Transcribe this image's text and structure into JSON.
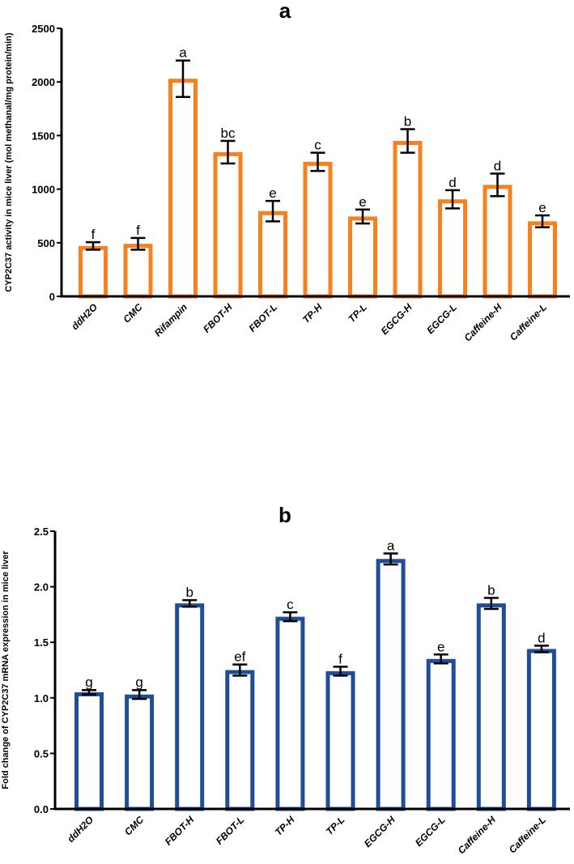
{
  "chart_data": [
    {
      "type": "bar",
      "title": "a",
      "ylabel": "CYP2C37 activity in mice liver (mol methanal/mg protein/min)",
      "xlabel": "",
      "categories": [
        "ddH2O",
        "CMC",
        "Rifampin",
        "FBOT-H",
        "FBOT-L",
        "TP-H",
        "TP-L",
        "EGCG-H",
        "EGCG-L",
        "Caffeine-H",
        "Caffeine-L"
      ],
      "values": [
        470,
        490,
        2030,
        1345,
        795,
        1255,
        745,
        1450,
        905,
        1040,
        700
      ],
      "errors": [
        35,
        55,
        170,
        105,
        95,
        85,
        65,
        110,
        85,
        105,
        55
      ],
      "significance": [
        "f",
        "f",
        "a",
        "bc",
        "e",
        "c",
        "e",
        "b",
        "d",
        "d",
        "e"
      ],
      "ylim": [
        0,
        2500
      ],
      "yticks": [
        0,
        500,
        1000,
        1500,
        2000,
        2500
      ],
      "ytick_labels": [
        "0",
        "500",
        "1000",
        "1500",
        "2000",
        "2500"
      ],
      "grid": false,
      "color": "#f5821f"
    },
    {
      "type": "bar",
      "title": "b",
      "ylabel": "Fold change of CYP2C37 mRNA expression in mice liver",
      "xlabel": "",
      "categories": [
        "ddH2O",
        "CMC",
        "FBOT-H",
        "FBOT-L",
        "TP-H",
        "TP-L",
        "EGCG-H",
        "EGCG-L",
        "Caffeine-H",
        "Caffeine-L"
      ],
      "values": [
        1.05,
        1.03,
        1.85,
        1.25,
        1.73,
        1.24,
        2.25,
        1.35,
        1.85,
        1.44
      ],
      "errors": [
        0.02,
        0.04,
        0.03,
        0.05,
        0.04,
        0.04,
        0.05,
        0.04,
        0.05,
        0.03
      ],
      "significance": [
        "g",
        "g",
        "b",
        "ef",
        "c",
        "f",
        "a",
        "e",
        "b",
        "d"
      ],
      "ylim": [
        0,
        2.5
      ],
      "yticks": [
        0,
        0.5,
        1,
        1.5,
        2,
        2.5
      ],
      "ytick_labels": [
        "0.0",
        "0.5",
        "1.0",
        "1.5",
        "2.0",
        "2.5"
      ],
      "grid": false,
      "color": "#1f4e96"
    }
  ]
}
